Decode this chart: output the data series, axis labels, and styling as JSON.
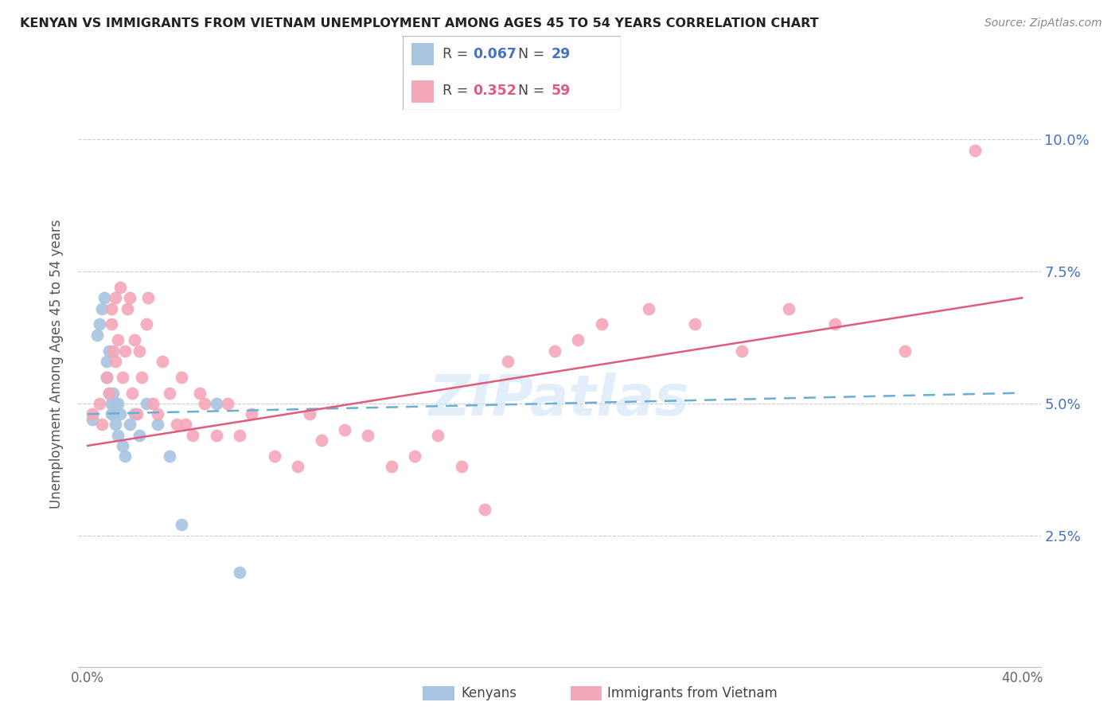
{
  "title": "KENYAN VS IMMIGRANTS FROM VIETNAM UNEMPLOYMENT AMONG AGES 45 TO 54 YEARS CORRELATION CHART",
  "source": "Source: ZipAtlas.com",
  "ylabel": "Unemployment Among Ages 45 to 54 years",
  "kenyan_color": "#a8c4e0",
  "vietnam_color": "#f4a7b9",
  "kenyan_line_color": "#6aaed6",
  "vietnam_line_color": "#e05c7a",
  "kenyan_R": 0.067,
  "kenyan_N": 29,
  "vietnam_R": 0.352,
  "vietnam_N": 59,
  "kenyan_x": [
    0.002,
    0.004,
    0.005,
    0.006,
    0.007,
    0.008,
    0.008,
    0.009,
    0.009,
    0.01,
    0.01,
    0.011,
    0.011,
    0.012,
    0.012,
    0.013,
    0.013,
    0.014,
    0.015,
    0.016,
    0.018,
    0.02,
    0.022,
    0.025,
    0.03,
    0.035,
    0.04,
    0.055,
    0.065
  ],
  "kenyan_y": [
    0.047,
    0.063,
    0.065,
    0.068,
    0.07,
    0.058,
    0.055,
    0.06,
    0.052,
    0.05,
    0.048,
    0.052,
    0.048,
    0.05,
    0.046,
    0.05,
    0.044,
    0.048,
    0.042,
    0.04,
    0.046,
    0.048,
    0.044,
    0.05,
    0.046,
    0.04,
    0.027,
    0.05,
    0.018
  ],
  "vietnam_x": [
    0.002,
    0.005,
    0.006,
    0.008,
    0.009,
    0.01,
    0.01,
    0.011,
    0.012,
    0.012,
    0.013,
    0.014,
    0.015,
    0.016,
    0.017,
    0.018,
    0.019,
    0.02,
    0.021,
    0.022,
    0.023,
    0.025,
    0.026,
    0.028,
    0.03,
    0.032,
    0.035,
    0.038,
    0.04,
    0.042,
    0.045,
    0.048,
    0.05,
    0.055,
    0.06,
    0.065,
    0.07,
    0.08,
    0.09,
    0.095,
    0.1,
    0.11,
    0.12,
    0.13,
    0.14,
    0.15,
    0.16,
    0.17,
    0.18,
    0.2,
    0.21,
    0.22,
    0.24,
    0.26,
    0.28,
    0.3,
    0.32,
    0.35,
    0.38
  ],
  "vietnam_y": [
    0.048,
    0.05,
    0.046,
    0.055,
    0.052,
    0.065,
    0.068,
    0.06,
    0.058,
    0.07,
    0.062,
    0.072,
    0.055,
    0.06,
    0.068,
    0.07,
    0.052,
    0.062,
    0.048,
    0.06,
    0.055,
    0.065,
    0.07,
    0.05,
    0.048,
    0.058,
    0.052,
    0.046,
    0.055,
    0.046,
    0.044,
    0.052,
    0.05,
    0.044,
    0.05,
    0.044,
    0.048,
    0.04,
    0.038,
    0.048,
    0.043,
    0.045,
    0.044,
    0.038,
    0.04,
    0.044,
    0.038,
    0.03,
    0.058,
    0.06,
    0.062,
    0.065,
    0.068,
    0.065,
    0.06,
    0.068,
    0.065,
    0.06,
    0.098
  ],
  "xlim": [
    0.0,
    0.4
  ],
  "ylim": [
    0.0,
    0.11
  ],
  "yticks": [
    0.025,
    0.05,
    0.075,
    0.1
  ],
  "ytick_labels": [
    "2.5%",
    "5.0%",
    "7.5%",
    "10.0%"
  ],
  "xtick_labels": [
    "0.0%",
    "",
    "",
    "",
    "",
    "",
    "",
    "",
    "40.0%"
  ]
}
